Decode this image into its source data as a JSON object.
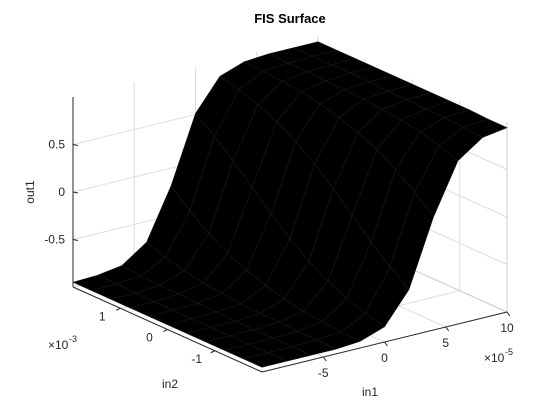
{
  "chart_data": {
    "type": "surface",
    "title": "FIS Surface",
    "xlabel": "in1",
    "ylabel": "in2",
    "zlabel": "out1",
    "x": [
      -0.0001,
      -8e-05,
      -6e-05,
      -4e-05,
      -2e-05,
      0,
      2e-05,
      4e-05,
      6e-05,
      8e-05,
      0.0001
    ],
    "y": [
      -0.002,
      -0.0016,
      -0.0012,
      -0.0008,
      -0.0004,
      0,
      0.0004,
      0.0008,
      0.0012,
      0.0016,
      0.002
    ],
    "z": [
      [
        -0.95,
        -0.95,
        -0.95,
        -0.95,
        -0.93,
        -0.84,
        -0.51,
        0.19,
        0.72,
        0.9,
        0.94
      ],
      [
        -0.95,
        -0.95,
        -0.95,
        -0.94,
        -0.92,
        -0.79,
        -0.36,
        0.36,
        0.79,
        0.92,
        0.94
      ],
      [
        -0.95,
        -0.95,
        -0.95,
        -0.94,
        -0.9,
        -0.72,
        -0.19,
        0.51,
        0.84,
        0.93,
        0.95
      ],
      [
        -0.95,
        -0.95,
        -0.95,
        -0.93,
        -0.88,
        -0.63,
        0,
        0.63,
        0.88,
        0.93,
        0.95
      ],
      [
        -0.95,
        -0.95,
        -0.95,
        -0.93,
        -0.84,
        -0.51,
        0.19,
        0.72,
        0.9,
        0.94,
        0.95
      ],
      [
        -0.95,
        -0.95,
        -0.94,
        -0.92,
        -0.79,
        -0.36,
        0.36,
        0.79,
        0.92,
        0.94,
        0.95
      ],
      [
        -0.95,
        -0.95,
        -0.94,
        -0.9,
        -0.72,
        -0.19,
        0.51,
        0.84,
        0.93,
        0.95,
        0.95
      ],
      [
        -0.95,
        -0.95,
        -0.93,
        -0.88,
        -0.63,
        0,
        0.63,
        0.88,
        0.93,
        0.95,
        0.95
      ],
      [
        -0.95,
        -0.95,
        -0.93,
        -0.84,
        -0.51,
        0.19,
        0.72,
        0.9,
        0.94,
        0.95,
        0.95
      ],
      [
        -0.95,
        -0.94,
        -0.92,
        -0.79,
        -0.36,
        0.36,
        0.79,
        0.92,
        0.94,
        0.95,
        0.95
      ],
      [
        -0.95,
        -0.94,
        -0.9,
        -0.72,
        -0.19,
        0.51,
        0.84,
        0.93,
        0.95,
        0.95,
        0.95
      ]
    ],
    "xlim": [
      -0.0001,
      0.0001
    ],
    "ylim": [
      -0.002,
      0.002
    ],
    "zlim": [
      -1,
      1
    ],
    "xticks": [
      {
        "value": -5e-05,
        "label": "-5"
      },
      {
        "value": 0,
        "label": "0"
      },
      {
        "value": 5e-05,
        "label": "5"
      },
      {
        "value": 0.0001,
        "label": "10"
      }
    ],
    "yticks": [
      {
        "value": -0.001,
        "label": "-1"
      },
      {
        "value": 0,
        "label": "0"
      },
      {
        "value": 0.001,
        "label": "1"
      }
    ],
    "zticks": [
      -0.5,
      0,
      0.5
    ],
    "x_exponent_base": "×10",
    "x_exponent": "-5",
    "y_exponent_base": "×10",
    "y_exponent": "-3",
    "colormap": "parula",
    "grid": true
  }
}
